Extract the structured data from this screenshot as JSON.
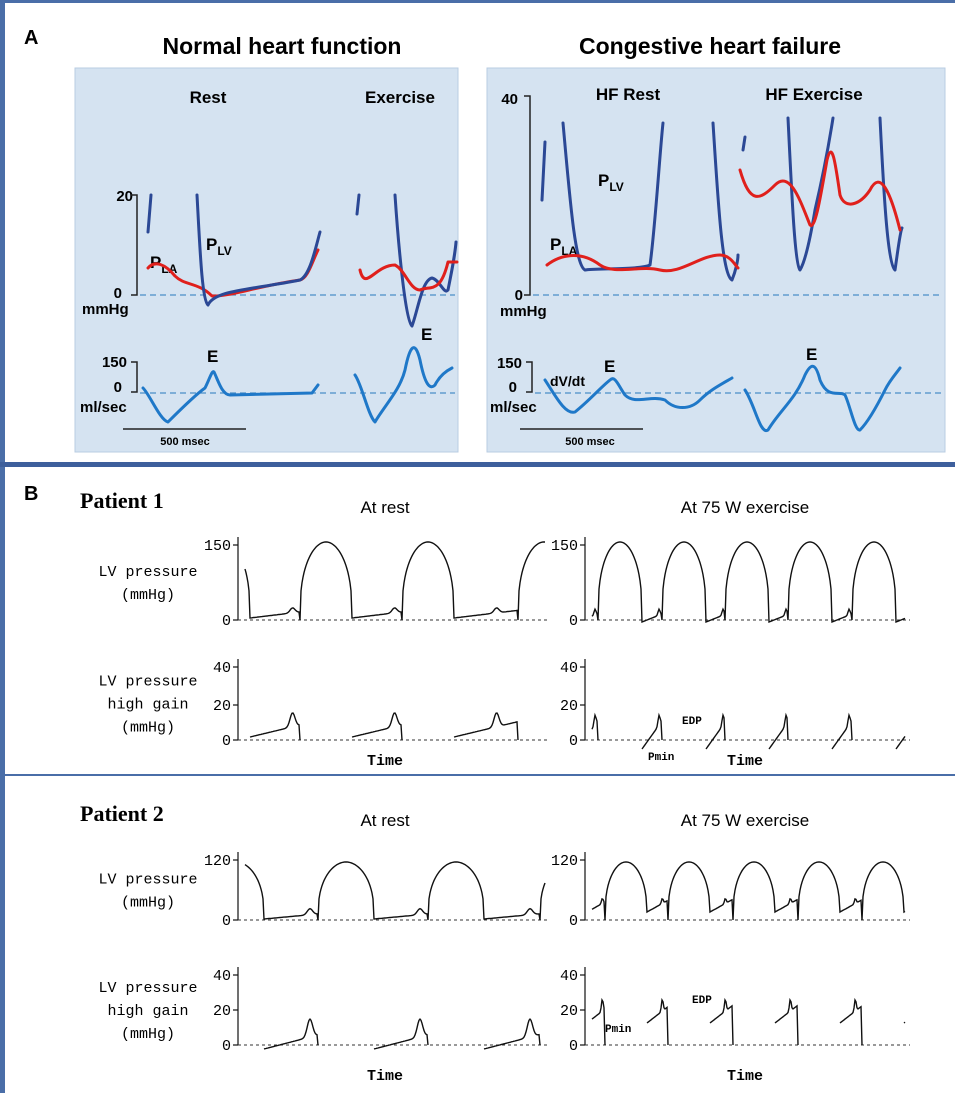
{
  "panel_a": {
    "label": "A",
    "groups": [
      {
        "title": "Normal heart function",
        "conditions": [
          "Rest",
          "Exercise"
        ],
        "pressure_ticks": [
          "20",
          "0"
        ],
        "pressure_unit": "mmHg",
        "flow_ticks": [
          "150",
          "0"
        ],
        "flow_unit": "ml/sec",
        "la": {
          "symbol": "P",
          "subscript": "LA"
        },
        "lv": {
          "symbol": "P",
          "subscript": "LV"
        },
        "peaks": [
          "E",
          "E"
        ],
        "scale_bar": "500 msec"
      },
      {
        "title": "Congestive heart failure",
        "conditions": [
          "HF Rest",
          "HF Exercise"
        ],
        "pressure_ticks": [
          "40",
          "0"
        ],
        "pressure_unit": "mmHg",
        "flow_ticks": [
          "150",
          "0"
        ],
        "flow_unit": "ml/sec",
        "flow_label": "dV/dt",
        "la": {
          "symbol": "P",
          "subscript": "LA"
        },
        "lv": {
          "symbol": "P",
          "subscript": "LV"
        },
        "peaks": [
          "E",
          "E"
        ],
        "scale_bar": "500 msec"
      }
    ]
  },
  "panel_b": {
    "label": "B",
    "patients": [
      {
        "title": "Patient 1",
        "conditions": [
          "At rest",
          "At 75 W exercise"
        ],
        "rows": [
          {
            "label": [
              "LV pressure",
              "(mmHg)"
            ],
            "ticks": [
              "150",
              "0"
            ]
          },
          {
            "label": [
              "LV pressure",
              "high gain",
              "(mmHg)"
            ],
            "ticks": [
              "40",
              "20",
              "0"
            ]
          }
        ],
        "time_label": "Time",
        "annotations": [
          "EDP",
          "Pmin"
        ]
      },
      {
        "title": "Patient 2",
        "conditions": [
          "At rest",
          "At 75 W exercise"
        ],
        "rows": [
          {
            "label": [
              "LV pressure",
              "(mmHg)"
            ],
            "ticks": [
              "120",
              "0"
            ]
          },
          {
            "label": [
              "LV pressure",
              "high gain",
              "(mmHg)"
            ],
            "ticks": [
              "40",
              "20",
              "0"
            ]
          }
        ],
        "time_label": "Time",
        "annotations": [
          "EDP",
          "Pmin"
        ]
      }
    ]
  }
}
